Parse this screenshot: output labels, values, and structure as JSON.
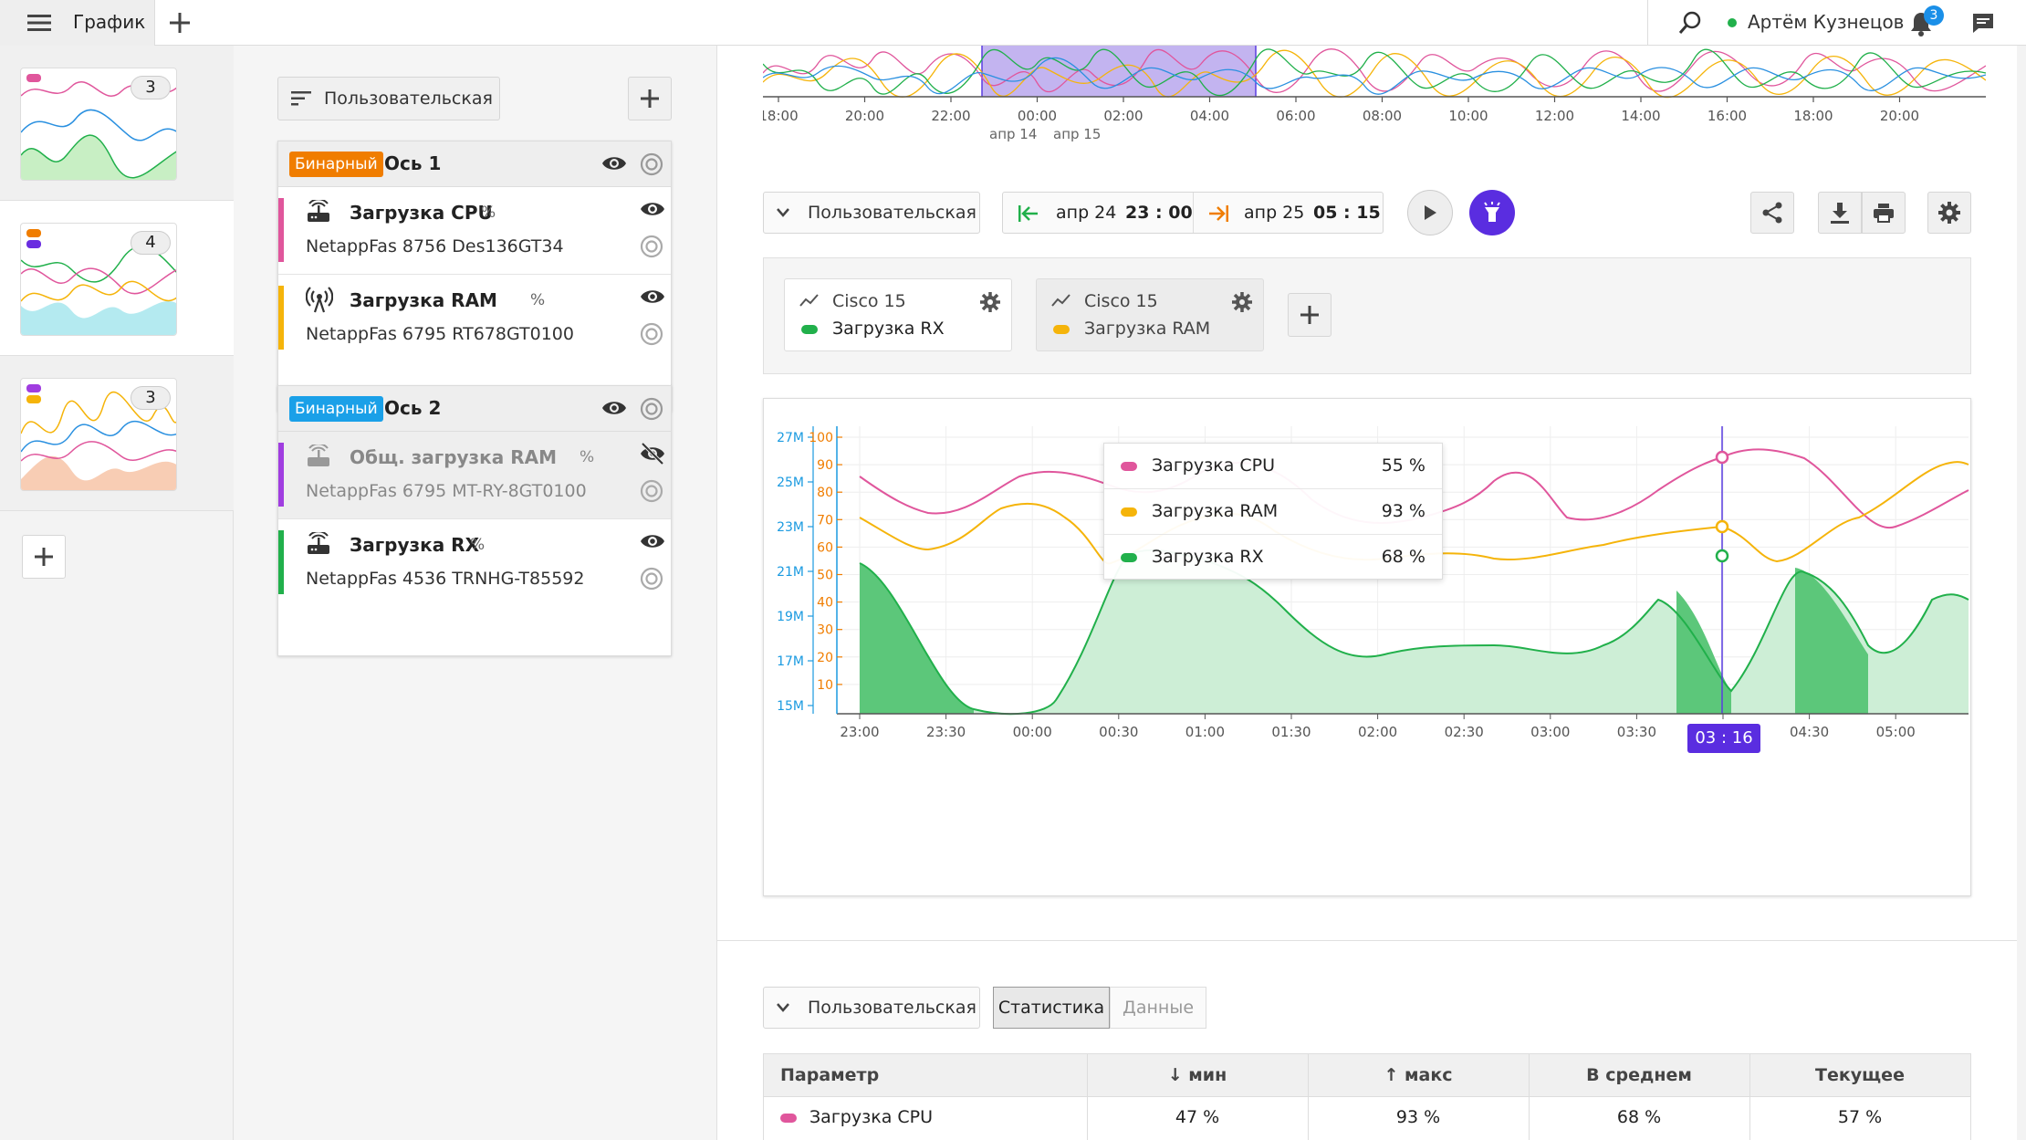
{
  "header": {
    "menu_icon": "menu-icon",
    "tab_title": "График",
    "add_icon": "plus-icon",
    "search_icon": "search-icon",
    "user_name": "Артём Кузнецов",
    "notification_count": "3"
  },
  "thumbnails": [
    {
      "count": "3"
    },
    {
      "count": "4"
    },
    {
      "count": "3"
    }
  ],
  "axes_panel": {
    "view_label": "Пользовательская",
    "axes": [
      {
        "tag": "Бинарный",
        "tag_color": "#f07d00",
        "title": "Ось 1",
        "items": [
          {
            "name": "Загрузка CPU",
            "unit": "%",
            "device": "NetappFas 8756 Des136GT34",
            "color": "#e0569c",
            "icon": "router-icon",
            "hidden": false
          },
          {
            "name": "Загрузка RAM",
            "unit": "%",
            "device": "NetappFas 6795 RT678GT0100",
            "color": "#f5b40a",
            "icon": "antenna-icon",
            "hidden": false
          }
        ]
      },
      {
        "tag": "Бинарный",
        "tag_color": "#1aa0e8",
        "title": "Ось 2",
        "items": [
          {
            "name": "Общ. загрузка RAM",
            "unit": "%",
            "device": "NetappFas 6795 MT-RY-8GT0100",
            "color": "#a03de0",
            "icon": "router-icon",
            "hidden": true
          },
          {
            "name": "Загрузка RX",
            "unit": "%",
            "device": "NetappFas 4536 TRNHG-T85592",
            "color": "#21b04b",
            "icon": "router-icon",
            "hidden": false
          }
        ]
      }
    ]
  },
  "overview": {
    "ticks": [
      "18:00",
      "20:00",
      "22:00",
      "00:00",
      "02:00",
      "04:00",
      "06:00",
      "08:00",
      "10:00",
      "12:00",
      "14:00",
      "16:00",
      "18:00",
      "20:00"
    ],
    "date1": "апр 14",
    "date2": "апр 15"
  },
  "controls": {
    "view_label": "Пользовательская",
    "from_date": "апр 24",
    "from_time": "23 : 00",
    "to_date": "апр 25",
    "to_time": "05 : 15"
  },
  "series_cards": [
    {
      "device": "Cisco 15",
      "metric": "Загрузка RX",
      "color": "#21b04b"
    },
    {
      "device": "Cisco 15",
      "metric": "Загрузка RAM",
      "color": "#f5b40a"
    }
  ],
  "chart_data": {
    "type": "line",
    "x": [
      "23:00",
      "23:30",
      "00:00",
      "00:30",
      "01:00",
      "01:30",
      "02:00",
      "02:30",
      "03:00",
      "03:30",
      "04:00",
      "04:30",
      "05:00"
    ],
    "y_left_ticks": [
      "27M",
      "25M",
      "23M",
      "21M",
      "19M",
      "17M",
      "15M"
    ],
    "y_right_ticks": [
      "100",
      "90",
      "80",
      "70",
      "60",
      "50",
      "40",
      "30",
      "20",
      "10"
    ],
    "cursor_time": "03 : 16",
    "series": [
      {
        "name": "Загрузка CPU",
        "value": "55 %",
        "color": "#e0569c"
      },
      {
        "name": "Загрузка RAM",
        "value": "93 %",
        "color": "#f5b40a"
      },
      {
        "name": "Загрузка RX",
        "value": "68 %",
        "color": "#21b04b"
      }
    ]
  },
  "stats": {
    "view_label": "Пользовательская",
    "tab_stats": "Статистика",
    "tab_data": "Данные",
    "headers": [
      "Параметр",
      "↓ мин",
      "↑ макс",
      "В среднем",
      "Текущее"
    ],
    "rows": [
      {
        "param": "Загрузка CPU",
        "color": "#e0569c",
        "min": "47 %",
        "max": "93 %",
        "avg": "68 %",
        "cur": "57 %"
      }
    ]
  }
}
